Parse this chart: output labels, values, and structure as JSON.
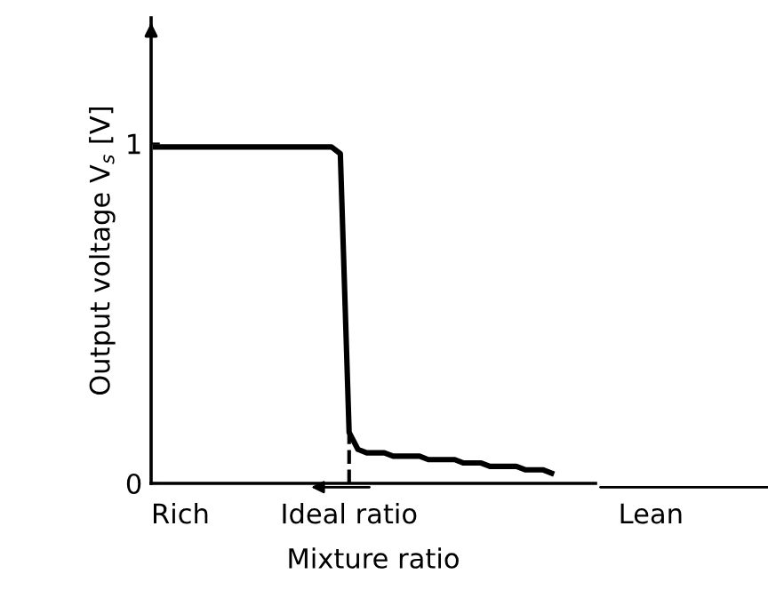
{
  "chart_data": {
    "type": "line",
    "xlabel": "Mixture ratio",
    "ylabel": "Output voltage V$_{s}$ [V]",
    "categories": [
      null,
      null,
      null,
      null,
      null,
      null,
      null,
      null,
      null,
      null,
      null,
      null,
      null,
      null,
      null,
      null,
      null,
      null,
      null,
      null,
      null,
      null,
      null,
      null,
      null,
      null,
      null,
      null,
      null,
      null,
      null,
      null,
      null,
      null,
      null,
      null,
      null,
      null,
      null,
      null,
      null,
      null,
      null,
      null,
      null,
      null
    ],
    "series": [
      {
        "color": "#000000",
        "values": [
          0.99,
          0.99,
          0.99,
          0.99,
          0.99,
          0.99,
          0.99,
          0.99,
          0.99,
          0.99,
          0.99,
          0.99,
          0.99,
          0.99,
          0.99,
          0.99,
          0.99,
          0.99,
          0.99,
          0.99,
          0.99,
          0.97,
          0.15,
          0.1,
          0.09,
          0.09,
          0.09,
          0.08,
          0.08,
          0.08,
          0.08,
          0.07,
          0.07,
          0.07,
          0.07,
          0.06,
          0.06,
          0.06,
          0.05,
          0.05,
          0.05,
          0.05,
          0.04,
          0.04,
          0.04,
          0.03
        ]
      }
    ],
    "ylim": [
      0,
      1.37
    ],
    "yticks": [
      0,
      1
    ],
    "annotations": [
      "Rich",
      "Ideal ratio",
      "Lean"
    ],
    "tick_labels": "y",
    "grid": false,
    "marker": "none",
    "line_style": "solid"
  }
}
